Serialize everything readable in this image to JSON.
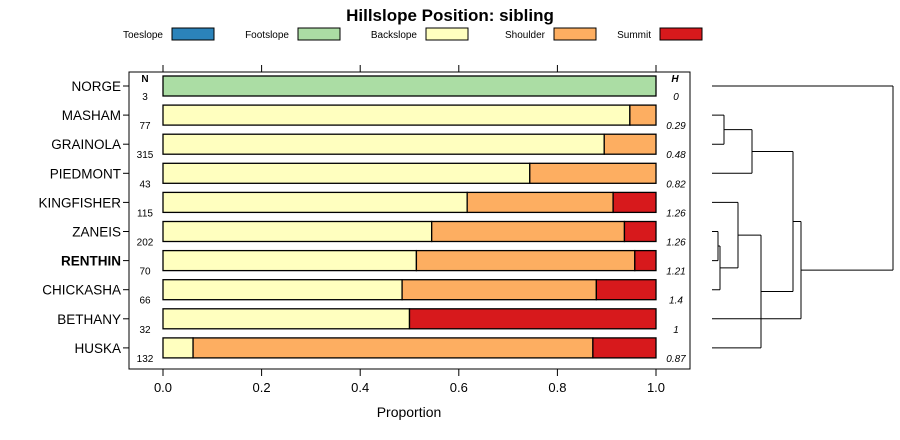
{
  "chart_data": {
    "type": "bar",
    "orientation": "horizontal",
    "stacked": true,
    "title": "Hillslope Position: sibling",
    "xlabel": "Proportion",
    "xlim": [
      0,
      1
    ],
    "xticks": [
      "0.0",
      "0.2",
      "0.4",
      "0.6",
      "0.8",
      "1.0"
    ],
    "column_headers": {
      "count": "N",
      "entropy": "H"
    },
    "legend": [
      {
        "name": "Toeslope",
        "color": "#2b83ba"
      },
      {
        "name": "Footslope",
        "color": "#abdda4"
      },
      {
        "name": "Backslope",
        "color": "#ffffbf"
      },
      {
        "name": "Shoulder",
        "color": "#fdae61"
      },
      {
        "name": "Summit",
        "color": "#d7191c"
      }
    ],
    "categories": [
      "NORGE",
      "MASHAM",
      "GRAINOLA",
      "PIEDMONT",
      "KINGFISHER",
      "ZANEIS",
      "RENTHIN",
      "CHICKASHA",
      "BETHANY",
      "HUSKA"
    ],
    "highlighted": "RENTHIN",
    "counts": [
      "3",
      "77",
      "315",
      "43",
      "115",
      "202",
      "70",
      "66",
      "32",
      "132"
    ],
    "entropy": [
      "0",
      "0.29",
      "0.48",
      "0.82",
      "1.26",
      "1.26",
      "1.21",
      "1.4",
      "1",
      "0.87"
    ],
    "series": [
      {
        "name": "Toeslope",
        "values": [
          0,
          0,
          0,
          0,
          0,
          0,
          0,
          0,
          0,
          0
        ]
      },
      {
        "name": "Footslope",
        "values": [
          1.0,
          0,
          0,
          0,
          0,
          0,
          0,
          0,
          0,
          0
        ]
      },
      {
        "name": "Backslope",
        "values": [
          0,
          0.947,
          0.895,
          0.744,
          0.617,
          0.545,
          0.514,
          0.485,
          0.5,
          0.061
        ]
      },
      {
        "name": "Shoulder",
        "values": [
          0,
          0.053,
          0.105,
          0.256,
          0.296,
          0.391,
          0.443,
          0.394,
          0,
          0.811
        ]
      },
      {
        "name": "Summit",
        "values": [
          0,
          0,
          0,
          0,
          0.087,
          0.064,
          0.043,
          0.121,
          0.5,
          0.128
        ]
      }
    ]
  }
}
